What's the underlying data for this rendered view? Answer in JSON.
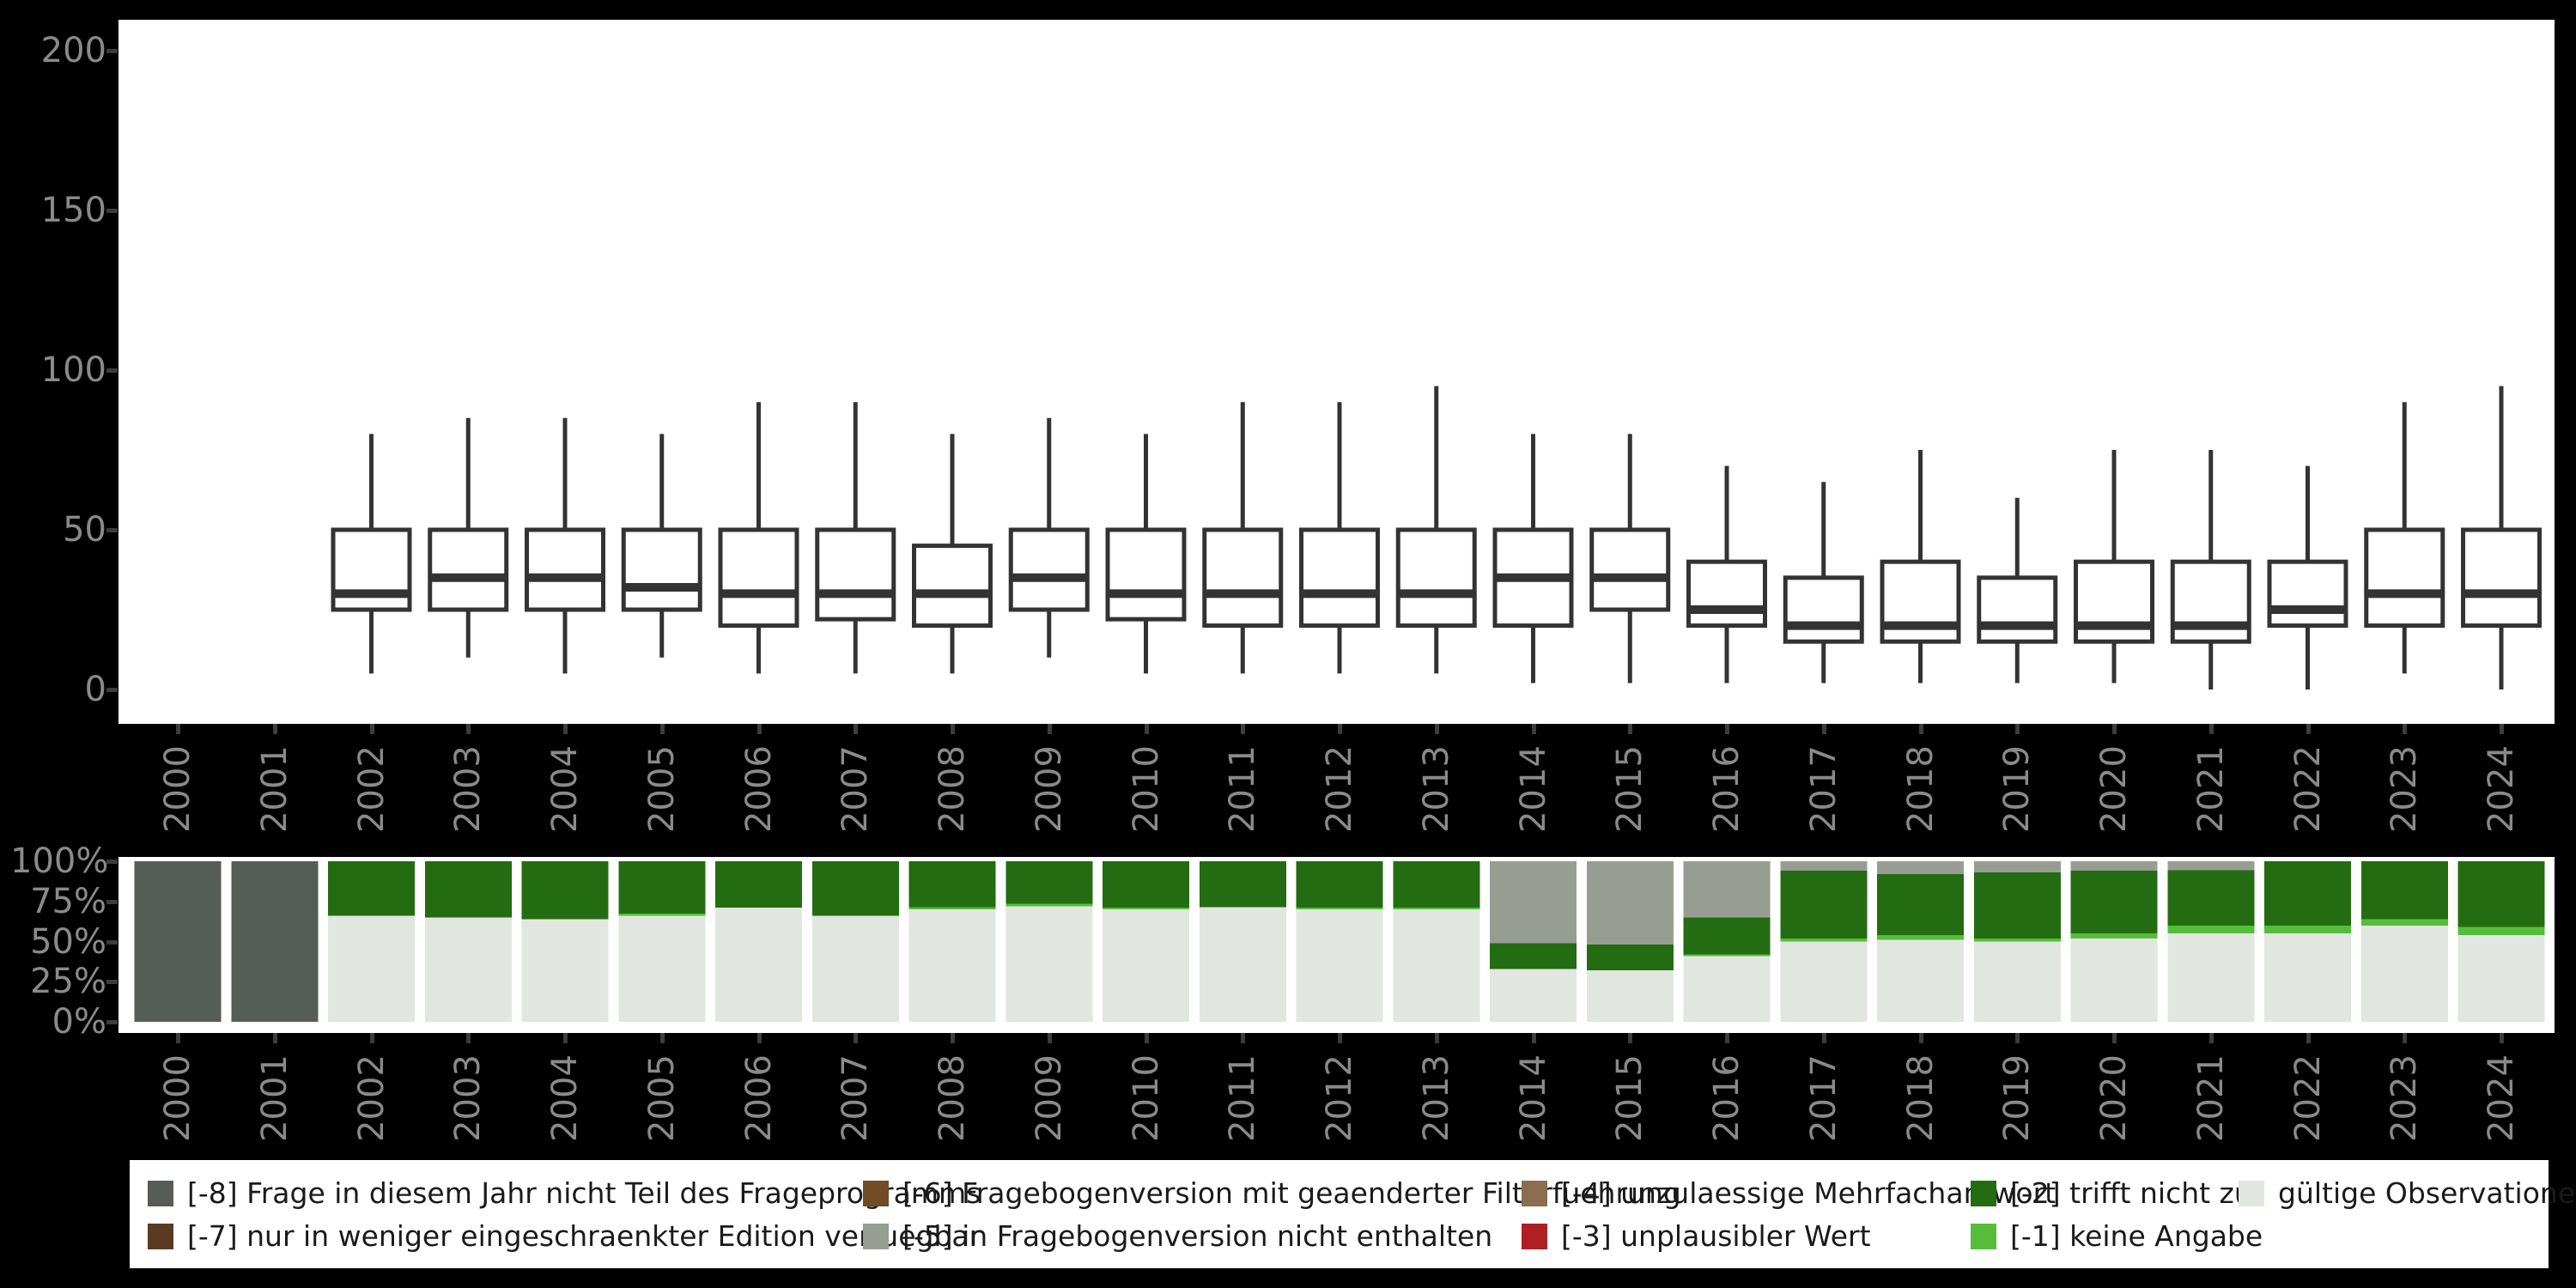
{
  "page": {
    "background": "#000000",
    "panel_background": "#ffffff",
    "axis_tick_color": "#3c3c3c",
    "axis_label_color": "#8a8a8a",
    "box_stroke_color": "#333333",
    "legend_background": "#ffffff",
    "legend_text_color": "#1a1a1a"
  },
  "categories": [
    "2000",
    "2001",
    "2002",
    "2003",
    "2004",
    "2005",
    "2006",
    "2007",
    "2008",
    "2009",
    "2010",
    "2011",
    "2012",
    "2013",
    "2014",
    "2015",
    "2016",
    "2017",
    "2018",
    "2019",
    "2020",
    "2021",
    "2022",
    "2023",
    "2024"
  ],
  "chart_data": [
    {
      "type": "boxplot",
      "title": "",
      "xlabel": "",
      "ylabel": "",
      "yticks": [
        0,
        50,
        100,
        150,
        200
      ],
      "ylim": [
        -11,
        210
      ],
      "grid": false,
      "x": [
        "2000",
        "2001",
        "2002",
        "2003",
        "2004",
        "2005",
        "2006",
        "2007",
        "2008",
        "2009",
        "2010",
        "2011",
        "2012",
        "2013",
        "2014",
        "2015",
        "2016",
        "2017",
        "2018",
        "2019",
        "2020",
        "2021",
        "2022",
        "2023",
        "2024"
      ],
      "boxes_note": "per year: [min, q1, median, q3, max]; null = no data shown",
      "boxes": [
        null,
        null,
        [
          5,
          25,
          30,
          50,
          80
        ],
        [
          10,
          25,
          35,
          50,
          85
        ],
        [
          5,
          25,
          35,
          50,
          85
        ],
        [
          10,
          25,
          32,
          50,
          80
        ],
        [
          5,
          20,
          30,
          50,
          90
        ],
        [
          5,
          22,
          30,
          50,
          90
        ],
        [
          5,
          20,
          30,
          45,
          80
        ],
        [
          10,
          25,
          35,
          50,
          85
        ],
        [
          5,
          22,
          30,
          50,
          80
        ],
        [
          5,
          20,
          30,
          50,
          90
        ],
        [
          5,
          20,
          30,
          50,
          90
        ],
        [
          5,
          20,
          30,
          50,
          95
        ],
        [
          2,
          20,
          35,
          50,
          80
        ],
        [
          2,
          25,
          35,
          50,
          80
        ],
        [
          2,
          20,
          25,
          40,
          70
        ],
        [
          2,
          15,
          20,
          35,
          65
        ],
        [
          2,
          15,
          20,
          40,
          75
        ],
        [
          2,
          15,
          20,
          35,
          60
        ],
        [
          2,
          15,
          20,
          40,
          75
        ],
        [
          0,
          15,
          20,
          40,
          75
        ],
        [
          0,
          20,
          25,
          40,
          70
        ],
        [
          5,
          20,
          30,
          50,
          90
        ],
        [
          0,
          20,
          30,
          50,
          95
        ]
      ]
    },
    {
      "type": "bar",
      "stacked": true,
      "unit": "percent",
      "title": "",
      "xlabel": "",
      "ylabel": "",
      "ytick_labels": [
        "0%",
        "25%",
        "50%",
        "75%",
        "100%"
      ],
      "ytick_values": [
        0,
        25,
        50,
        75,
        100
      ],
      "ylim": [
        0,
        100
      ],
      "categories": [
        "2000",
        "2001",
        "2002",
        "2003",
        "2004",
        "2005",
        "2006",
        "2007",
        "2008",
        "2009",
        "2010",
        "2011",
        "2012",
        "2013",
        "2014",
        "2015",
        "2016",
        "2017",
        "2018",
        "2019",
        "2020",
        "2021",
        "2022",
        "2023",
        "2024"
      ],
      "stack_order_note": "series listed bottom-to-top of the stack",
      "series": [
        {
          "key": "valid",
          "name": "gültige Observationen",
          "color": "#e2e6e0",
          "values": [
            0,
            0,
            66,
            65,
            64,
            66,
            71,
            66,
            70,
            72,
            70,
            71.5,
            70,
            70,
            33,
            32,
            41,
            50,
            51,
            50,
            52,
            55,
            55,
            60,
            54
          ]
        },
        {
          "key": "minus1",
          "name": "[-1] keine Angabe",
          "color": "#55bd3b",
          "values": [
            0,
            0,
            0,
            0,
            0,
            1.5,
            0,
            0,
            1.5,
            1.5,
            1,
            0,
            1,
            1,
            0,
            0,
            1,
            2,
            3,
            2,
            3,
            5,
            5,
            4,
            5
          ]
        },
        {
          "key": "minus2",
          "name": "[-2] trifft nicht zu",
          "color": "#246c11",
          "values": [
            0,
            0,
            34,
            35,
            36,
            32.5,
            29,
            34,
            28.5,
            26.5,
            29,
            28.5,
            29,
            29,
            16,
            16,
            23,
            42,
            38,
            41,
            39,
            34.5,
            40,
            36,
            41
          ]
        },
        {
          "key": "minus3",
          "name": "[-3] unplausibler Wert",
          "color": "#af2025",
          "values": [
            0,
            0,
            0,
            0,
            0,
            0,
            0,
            0,
            0,
            0,
            0,
            0,
            0,
            0,
            0,
            0,
            0,
            0,
            0,
            0,
            0,
            0,
            0,
            0,
            0
          ]
        },
        {
          "key": "minus4",
          "name": "[-4] unzulaessige Mehrfachantwort",
          "color": "#8c6d50",
          "values": [
            0,
            0,
            0,
            0,
            0,
            0,
            0,
            0,
            0,
            0,
            0,
            0,
            0,
            0,
            0,
            0,
            0,
            0,
            0,
            0,
            0,
            0,
            0,
            0,
            0
          ]
        },
        {
          "key": "minus5",
          "name": "[-5] in Fragebogenversion nicht enthalten",
          "color": "#979d93",
          "values": [
            0,
            0,
            0,
            0,
            0,
            0,
            0,
            0,
            0,
            0,
            0,
            0,
            0,
            0,
            51,
            52,
            35,
            6,
            8,
            7,
            6,
            5.5,
            0,
            0,
            0
          ]
        },
        {
          "key": "minus6",
          "name": "[-6] Fragebogenversion mit geaenderter Filterfuehrung",
          "color": "#6f4b26",
          "values": [
            0,
            0,
            0,
            0,
            0,
            0,
            0,
            0,
            0,
            0,
            0,
            0,
            0,
            0,
            0,
            0,
            0,
            0,
            0,
            0,
            0,
            0,
            0,
            0,
            0
          ]
        },
        {
          "key": "minus7",
          "name": "[-7] nur in weniger eingeschraenkter Edition verfuegbar",
          "color": "#5b3a22",
          "values": [
            0,
            0,
            0,
            0,
            0,
            0,
            0,
            0,
            0,
            0,
            0,
            0,
            0,
            0,
            0,
            0,
            0,
            0,
            0,
            0,
            0,
            0,
            0,
            0,
            0
          ]
        },
        {
          "key": "minus8",
          "name": "[-8] Frage in diesem Jahr nicht Teil des Frageprogramms",
          "color": "#565c56",
          "values": [
            100,
            100,
            0,
            0,
            0,
            0,
            0,
            0,
            0,
            0,
            0,
            0,
            0,
            0,
            0,
            0,
            0,
            0,
            0,
            0,
            0,
            0,
            0,
            0,
            0
          ]
        }
      ]
    }
  ],
  "legend": {
    "rows": [
      [
        {
          "key": "minus8",
          "label": "[-8] Frage in diesem Jahr nicht Teil des Frageprogramms",
          "color": "#565c56"
        },
        {
          "key": "minus6",
          "label": "[-6] Fragebogenversion mit geaenderter Filterfuehrung",
          "color": "#6f4b26"
        },
        {
          "key": "minus4",
          "label": "[-4] unzulaessige Mehrfachantwort",
          "color": "#8c6d50"
        },
        {
          "key": "minus2",
          "label": "[-2] trifft nicht zu",
          "color": "#246c11"
        },
        {
          "key": "valid",
          "label": "gültige Observationen",
          "color": "#e2e6e0"
        }
      ],
      [
        {
          "key": "minus7",
          "label": "[-7] nur in weniger eingeschraenkter Edition verfuegbar",
          "color": "#5b3a22"
        },
        {
          "key": "minus5",
          "label": "[-5] in Fragebogenversion nicht enthalten",
          "color": "#979d93"
        },
        {
          "key": "minus3",
          "label": "[-3] unplausibler Wert",
          "color": "#af2025"
        },
        {
          "key": "minus1",
          "label": "[-1] keine Angabe",
          "color": "#55bd3b"
        }
      ]
    ]
  }
}
